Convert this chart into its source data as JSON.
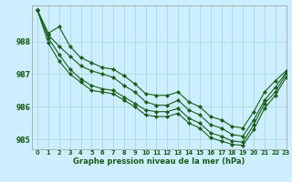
{
  "xlabel": "Graphe pression niveau de la mer (hPa)",
  "bg_color": "#cceeff",
  "line_color": "#1a5c1a",
  "grid_color": "#aadddd",
  "xlim": [
    -0.5,
    23
  ],
  "ylim": [
    984.7,
    989.1
  ],
  "yticks": [
    985,
    986,
    987,
    988
  ],
  "xticks": [
    0,
    1,
    2,
    3,
    4,
    5,
    6,
    7,
    8,
    9,
    10,
    11,
    12,
    13,
    14,
    15,
    16,
    17,
    18,
    19,
    20,
    21,
    22,
    23
  ],
  "series": [
    [
      988.95,
      988.25,
      988.45,
      987.85,
      987.5,
      987.35,
      987.2,
      987.15,
      986.95,
      986.7,
      986.4,
      986.35,
      986.35,
      986.45,
      986.15,
      986.0,
      985.7,
      985.6,
      985.4,
      985.35,
      985.85,
      986.45,
      986.8,
      987.1
    ],
    [
      988.95,
      988.2,
      987.85,
      987.55,
      987.25,
      987.1,
      987.0,
      986.9,
      986.65,
      986.45,
      986.15,
      986.05,
      986.05,
      986.2,
      985.9,
      985.75,
      985.45,
      985.35,
      985.15,
      985.1,
      985.6,
      986.2,
      986.6,
      987.05
    ],
    [
      988.95,
      988.1,
      987.6,
      987.15,
      986.85,
      986.65,
      986.55,
      986.5,
      986.3,
      986.1,
      985.9,
      985.85,
      985.85,
      985.95,
      985.65,
      985.5,
      985.2,
      985.1,
      984.95,
      984.92,
      985.45,
      986.1,
      986.45,
      987.0
    ],
    [
      988.95,
      987.95,
      987.4,
      987.0,
      986.75,
      986.5,
      986.45,
      986.4,
      986.2,
      986.0,
      985.75,
      985.7,
      985.7,
      985.8,
      985.5,
      985.35,
      985.05,
      984.95,
      984.85,
      984.82,
      985.3,
      985.95,
      986.35,
      986.9
    ]
  ]
}
